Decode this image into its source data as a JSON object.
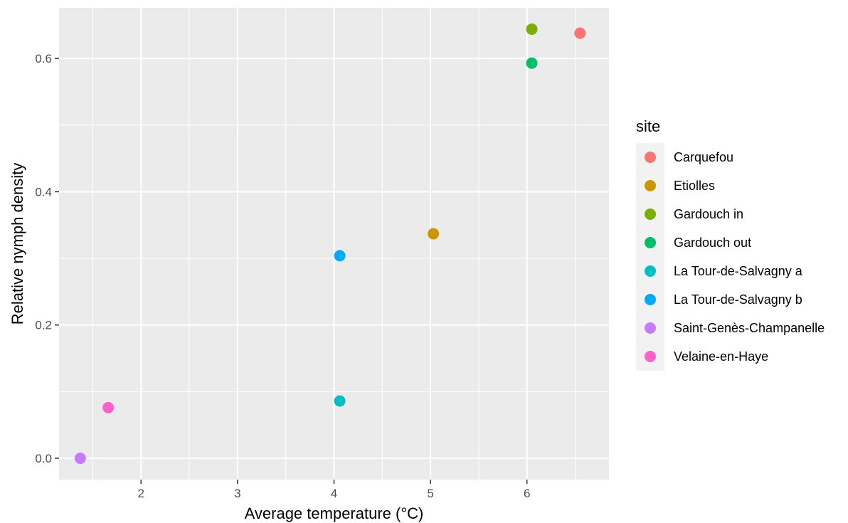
{
  "chart_data": {
    "type": "scatter",
    "xlabel": "Average temperature (°C)",
    "ylabel": "Relative nymph density",
    "xlim": [
      1.15,
      6.85
    ],
    "ylim": [
      -0.032,
      0.676
    ],
    "x_ticks": [
      2,
      3,
      4,
      5,
      6
    ],
    "y_ticks": [
      0.0,
      0.2,
      0.4,
      0.6
    ],
    "x_tick_labels": [
      "2",
      "3",
      "4",
      "5",
      "6"
    ],
    "y_tick_labels": [
      "0.0",
      "0.2",
      "0.4",
      "0.6"
    ],
    "grid": true,
    "background": "#ebebeb",
    "legend": {
      "title": "site",
      "position": "right"
    },
    "series": [
      {
        "name": "Carquefou",
        "color": "#F8766D",
        "points": [
          {
            "x": 6.55,
            "y": 0.638
          }
        ]
      },
      {
        "name": "Etiolles",
        "color": "#CD9600",
        "points": [
          {
            "x": 5.03,
            "y": 0.337
          }
        ]
      },
      {
        "name": "Gardouch in",
        "color": "#7CAE00",
        "points": [
          {
            "x": 6.05,
            "y": 0.644
          }
        ]
      },
      {
        "name": "Gardouch out",
        "color": "#00BE67",
        "points": [
          {
            "x": 6.05,
            "y": 0.593
          }
        ]
      },
      {
        "name": "La Tour-de-Salvagny a",
        "color": "#00BFC4",
        "points": [
          {
            "x": 4.06,
            "y": 0.086
          }
        ]
      },
      {
        "name": "La Tour-de-Salvagny b",
        "color": "#00A9FF",
        "points": [
          {
            "x": 4.06,
            "y": 0.304
          }
        ]
      },
      {
        "name": "Saint-Genès-Champanelle",
        "color": "#C77CFF",
        "points": [
          {
            "x": 1.37,
            "y": 0.0
          }
        ]
      },
      {
        "name": "Velaine-en-Haye",
        "color": "#FF61CC",
        "points": [
          {
            "x": 1.66,
            "y": 0.076
          }
        ]
      }
    ]
  }
}
